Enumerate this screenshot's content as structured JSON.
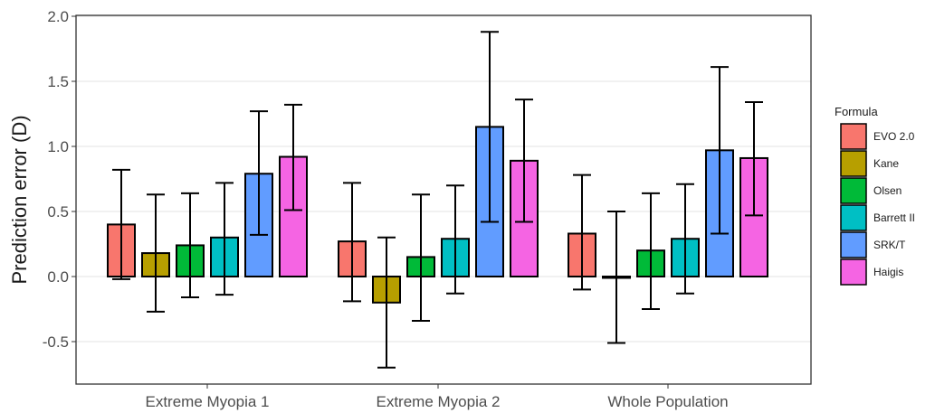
{
  "chart_data": {
    "type": "bar",
    "title": "",
    "xlabel": "",
    "ylabel": "Prediction error (D)",
    "ylim": [
      -0.82,
      2.0
    ],
    "yticks": [
      -0.5,
      0.0,
      0.5,
      1.0,
      1.5,
      2.0
    ],
    "ytick_labels": [
      "-0.5",
      "0.0",
      "0.5",
      "1.0",
      "1.5",
      "2.0"
    ],
    "grid": true,
    "legend_position": "right",
    "legend_title": "Formula",
    "categories": [
      "Extreme Myopia 1",
      "Extreme Myopia 2",
      "Whole Population"
    ],
    "series": [
      {
        "name": "EVO 2.0",
        "color": "#F8766D",
        "values": [
          0.4,
          0.27,
          0.33
        ],
        "error_low": [
          -0.02,
          -0.19,
          -0.1
        ],
        "error_high": [
          0.82,
          0.72,
          0.78
        ]
      },
      {
        "name": "Kane",
        "color": "#B79F00",
        "values": [
          0.18,
          -0.2,
          0.0
        ],
        "error_low": [
          -0.27,
          -0.7,
          -0.51
        ],
        "error_high": [
          0.63,
          0.3,
          0.5
        ]
      },
      {
        "name": "Olsen",
        "color": "#00BA38",
        "values": [
          0.24,
          0.15,
          0.2
        ],
        "error_low": [
          -0.16,
          -0.34,
          -0.25
        ],
        "error_high": [
          0.64,
          0.63,
          0.64
        ]
      },
      {
        "name": "Barrett II",
        "color": "#00BFC4",
        "values": [
          0.3,
          0.29,
          0.29
        ],
        "error_low": [
          -0.14,
          -0.13,
          -0.13
        ],
        "error_high": [
          0.72,
          0.7,
          0.71
        ]
      },
      {
        "name": "SRK/T",
        "color": "#619CFF",
        "values": [
          0.79,
          1.15,
          0.97
        ],
        "error_low": [
          0.32,
          0.42,
          0.33
        ],
        "error_high": [
          1.27,
          1.88,
          1.61
        ]
      },
      {
        "name": "Haigis",
        "color": "#F564E3",
        "values": [
          0.92,
          0.89,
          0.91
        ],
        "error_low": [
          0.51,
          0.42,
          0.47
        ],
        "error_high": [
          1.32,
          1.36,
          1.34
        ]
      }
    ]
  }
}
